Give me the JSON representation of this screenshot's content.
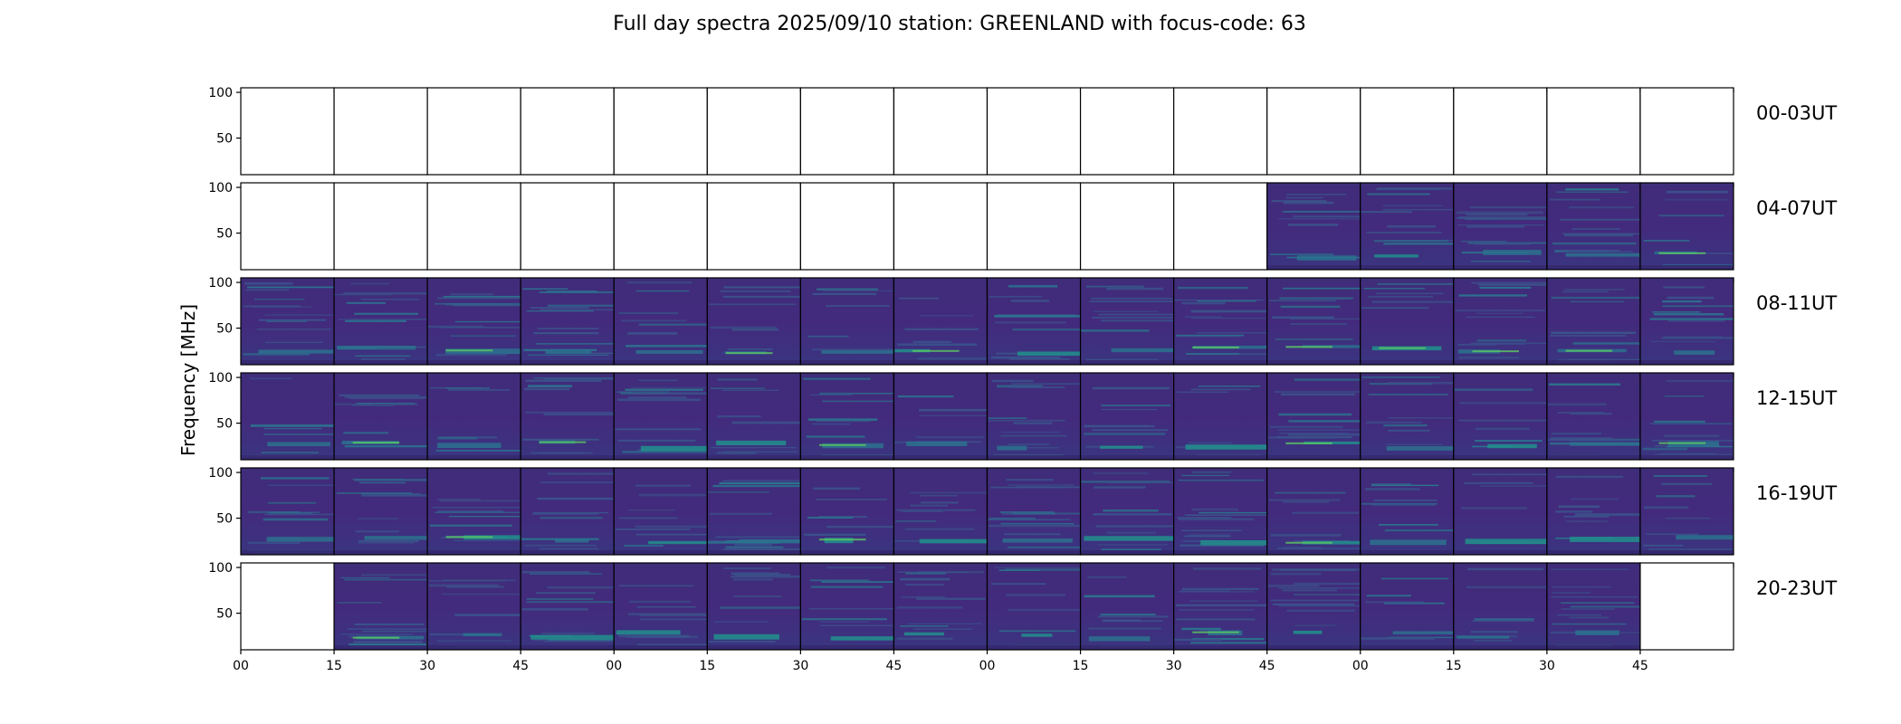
{
  "chart_data": {
    "type": "heatmap",
    "title": "Full day spectra 2025/09/10 station: GREENLAND with focus-code: 63",
    "ylabel": "Frequency [MHz]",
    "xlabel": "",
    "ylim": [
      10,
      105
    ],
    "yticks": [
      50,
      100
    ],
    "xticks": [
      "00",
      "15",
      "30",
      "45",
      "00",
      "15",
      "30",
      "45",
      "00",
      "15",
      "30",
      "45",
      "00",
      "15",
      "30",
      "45"
    ],
    "grid": false,
    "colormap": "viridis",
    "panels_per_row": 16,
    "rows": [
      {
        "label": "00-03UT",
        "data_panels": [
          false,
          false,
          false,
          false,
          false,
          false,
          false,
          false,
          false,
          false,
          false,
          false,
          false,
          false,
          false,
          false
        ]
      },
      {
        "label": "04-07UT",
        "data_panels": [
          false,
          false,
          false,
          false,
          false,
          false,
          false,
          false,
          false,
          false,
          false,
          true,
          true,
          true,
          true,
          true
        ]
      },
      {
        "label": "08-11UT",
        "data_panels": [
          true,
          true,
          true,
          true,
          true,
          true,
          true,
          true,
          true,
          true,
          true,
          true,
          true,
          true,
          true,
          true
        ]
      },
      {
        "label": "12-15UT",
        "data_panels": [
          true,
          true,
          true,
          true,
          true,
          true,
          true,
          true,
          true,
          true,
          true,
          true,
          true,
          true,
          true,
          true
        ]
      },
      {
        "label": "16-19UT",
        "data_panels": [
          true,
          true,
          true,
          true,
          true,
          true,
          true,
          true,
          true,
          true,
          true,
          true,
          true,
          true,
          true,
          true
        ]
      },
      {
        "label": "20-23UT",
        "data_panels": [
          false,
          true,
          true,
          true,
          true,
          true,
          true,
          true,
          true,
          true,
          true,
          true,
          true,
          true,
          true,
          false
        ]
      }
    ]
  }
}
